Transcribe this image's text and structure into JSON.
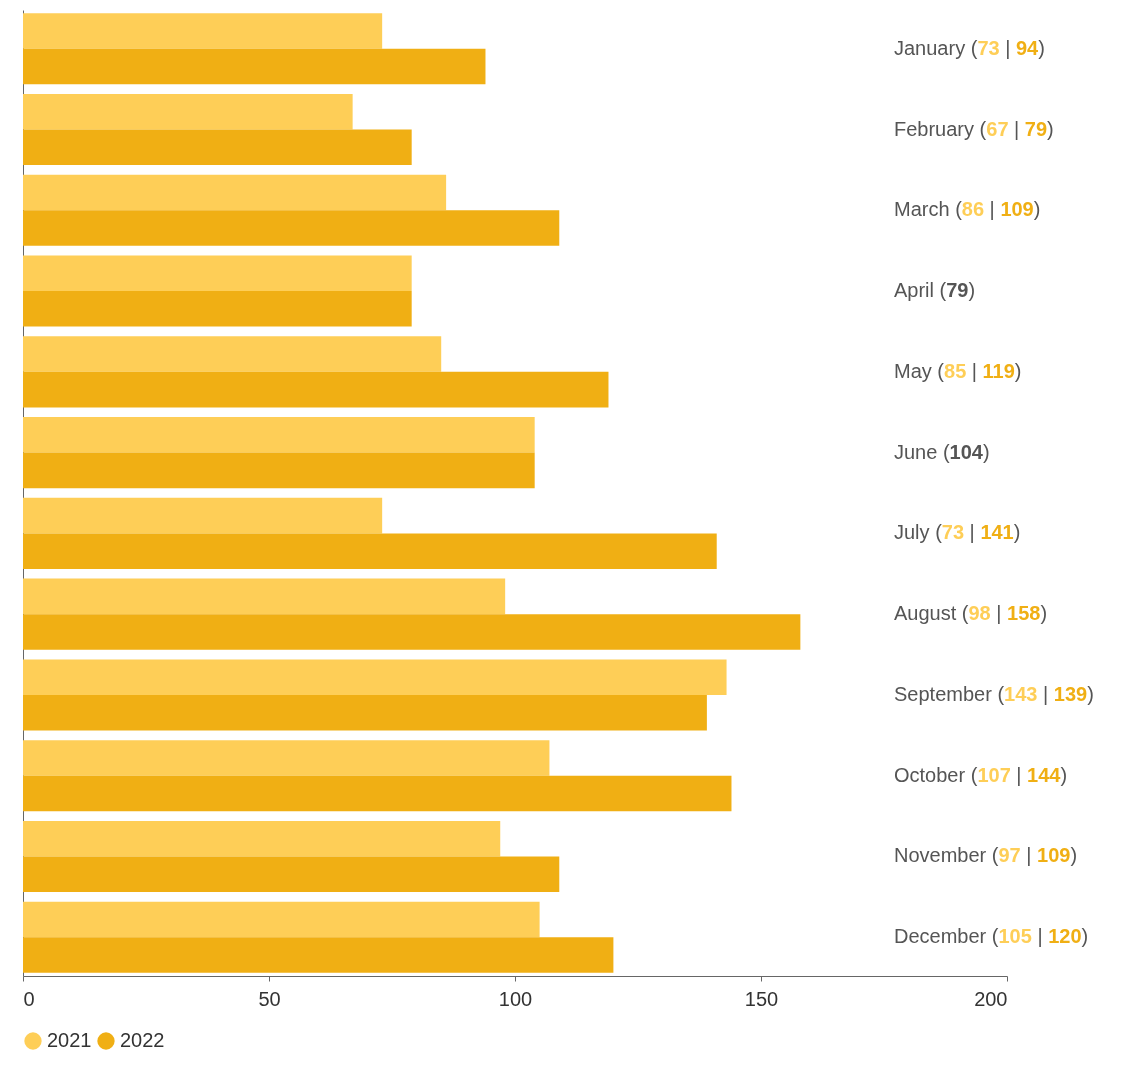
{
  "chart_data": {
    "type": "bar",
    "orientation": "horizontal",
    "categories": [
      "January",
      "February",
      "March",
      "April",
      "May",
      "June",
      "July",
      "August",
      "September",
      "October",
      "November",
      "December"
    ],
    "series": [
      {
        "name": "2021",
        "color": "#fece57",
        "values": [
          73,
          67,
          86,
          79,
          85,
          104,
          73,
          98,
          143,
          107,
          97,
          105
        ]
      },
      {
        "name": "2022",
        "color": "#f0af14",
        "values": [
          94,
          79,
          109,
          79,
          119,
          104,
          141,
          158,
          139,
          144,
          109,
          120
        ]
      }
    ],
    "annotations": [
      "(73 | 94)",
      "(67 | 79)",
      "(86 | 109)",
      "(79)",
      "(85 | 119)",
      "(104)",
      "(73 | 141)",
      "(98 | 158)",
      "(143 | 139)",
      "(107 | 144)",
      "(97 | 109)",
      "(105 | 120)"
    ],
    "xlim": [
      0,
      200
    ],
    "xticks": [
      0,
      50,
      100,
      150,
      200
    ],
    "legend": "bottom left",
    "grid": false
  }
}
